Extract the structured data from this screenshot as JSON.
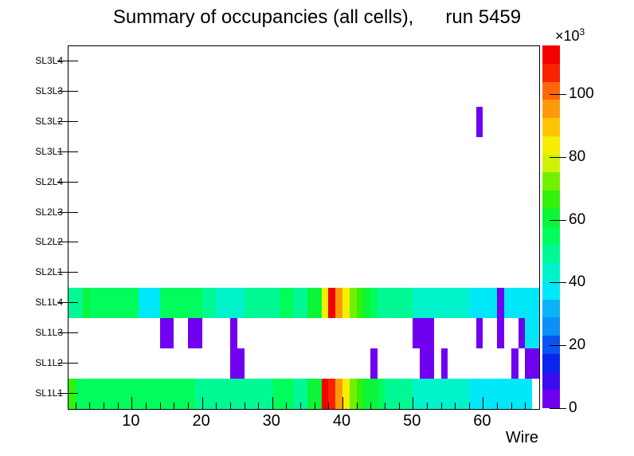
{
  "chart_data": {
    "type": "heatmap",
    "title": "Summary of occupancies (all cells),      run 5459",
    "xlabel": "Wire",
    "x_range": [
      1,
      68
    ],
    "x_major_ticks": [
      10,
      20,
      30,
      40,
      50,
      60
    ],
    "x_minor_step": 2,
    "y_rows_bottom_to_top": [
      "SL1L1",
      "SL1L2",
      "SL1L3",
      "SL1L4",
      "SL2L1",
      "SL2L2",
      "SL2L3",
      "SL2L4",
      "SL3L1",
      "SL3L2",
      "SL3L3",
      "SL3L4"
    ],
    "z_max": 115500,
    "z_ticks": [
      0,
      20,
      40,
      60,
      80,
      100
    ],
    "z_exponent_label": {
      "base": "×10",
      "exp": "3"
    },
    "palette_20": [
      "#7000f0",
      "#3a0df0",
      "#0b24ee",
      "#0a52f1",
      "#0d8ff5",
      "#0bb2f6",
      "#00e8f9",
      "#00f3cb",
      "#00f994",
      "#00fd5c",
      "#0bf539",
      "#32f20d",
      "#73f002",
      "#cdf206",
      "#f5ee02",
      "#fdc404",
      "#fd9a07",
      "#fc6608",
      "#f92102",
      "#f30001"
    ],
    "cells_as_wire_segments": {
      "SL1L1": [
        [
          1,
          1,
          64000
        ],
        [
          2,
          18,
          55000
        ],
        [
          19,
          29,
          50000
        ],
        [
          30,
          32,
          55000
        ],
        [
          33,
          34,
          50000
        ],
        [
          35,
          36,
          60000
        ],
        [
          37,
          37,
          112000
        ],
        [
          38,
          38,
          105000
        ],
        [
          39,
          39,
          95000
        ],
        [
          40,
          40,
          84000
        ],
        [
          41,
          41,
          73000
        ],
        [
          42,
          42,
          66000
        ],
        [
          43,
          44,
          60000
        ],
        [
          45,
          45,
          55000
        ],
        [
          46,
          49,
          50000
        ],
        [
          50,
          57,
          44000
        ],
        [
          58,
          66,
          37000
        ]
      ],
      "SL1L2": [
        [
          24,
          25,
          3000
        ],
        [
          44,
          44,
          3000
        ],
        [
          51,
          52,
          3000
        ],
        [
          54,
          54,
          3000
        ],
        [
          64,
          64,
          3000
        ],
        [
          66,
          67,
          3000
        ]
      ],
      "SL1L3": [
        [
          14,
          15,
          3000
        ],
        [
          18,
          19,
          3000
        ],
        [
          24,
          24,
          3000
        ],
        [
          50,
          52,
          3000
        ],
        [
          59,
          59,
          3000
        ],
        [
          62,
          62,
          3000
        ],
        [
          65,
          65,
          3000
        ],
        [
          66,
          67,
          37000
        ]
      ],
      "SL1L4": [
        [
          1,
          2,
          50000
        ],
        [
          3,
          3,
          60000
        ],
        [
          4,
          10,
          52000
        ],
        [
          11,
          13,
          39000
        ],
        [
          14,
          19,
          55000
        ],
        [
          20,
          21,
          50000
        ],
        [
          22,
          25,
          42000
        ],
        [
          26,
          30,
          50000
        ],
        [
          31,
          32,
          55000
        ],
        [
          33,
          34,
          50000
        ],
        [
          35,
          36,
          60000
        ],
        [
          37,
          37,
          84000
        ],
        [
          38,
          38,
          112000
        ],
        [
          39,
          39,
          97000
        ],
        [
          40,
          40,
          84000
        ],
        [
          41,
          41,
          73000
        ],
        [
          42,
          42,
          64000
        ],
        [
          43,
          43,
          60000
        ],
        [
          44,
          44,
          57000
        ],
        [
          45,
          49,
          50000
        ],
        [
          50,
          57,
          44000
        ],
        [
          58,
          61,
          37000
        ],
        [
          62,
          62,
          3000
        ],
        [
          63,
          67,
          37000
        ]
      ],
      "SL2L1": [],
      "SL2L2": [],
      "SL2L3": [],
      "SL2L4": [],
      "SL3L1": [],
      "SL3L2": [
        [
          59,
          59,
          3000
        ]
      ],
      "SL3L3": [],
      "SL3L4": []
    }
  }
}
